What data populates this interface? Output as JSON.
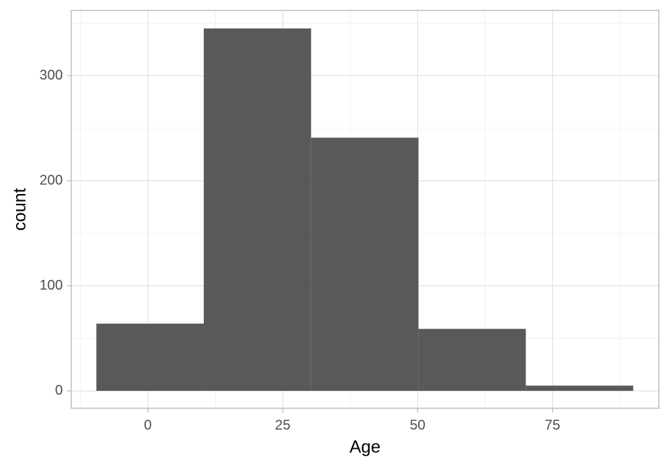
{
  "chart_data": {
    "type": "histogram",
    "x_label": "Age",
    "y_label": "count",
    "bins": [
      -9.53,
      10.37,
      30.26,
      50.16,
      70.05,
      89.95
    ],
    "values": [
      64,
      345,
      241,
      59,
      5
    ],
    "color": "#595959",
    "xlim": [
      -14.2,
      94.7
    ],
    "ylim": [
      -16.6,
      362.1
    ],
    "xticks": [
      0,
      25,
      50,
      75
    ],
    "yticks": [
      0,
      100,
      200,
      300
    ],
    "x_minor_grid": [
      -12.5,
      12.5,
      37.5,
      62.5,
      87.5
    ],
    "y_minor_grid": [
      50,
      150,
      250,
      350
    ],
    "grid": true
  }
}
